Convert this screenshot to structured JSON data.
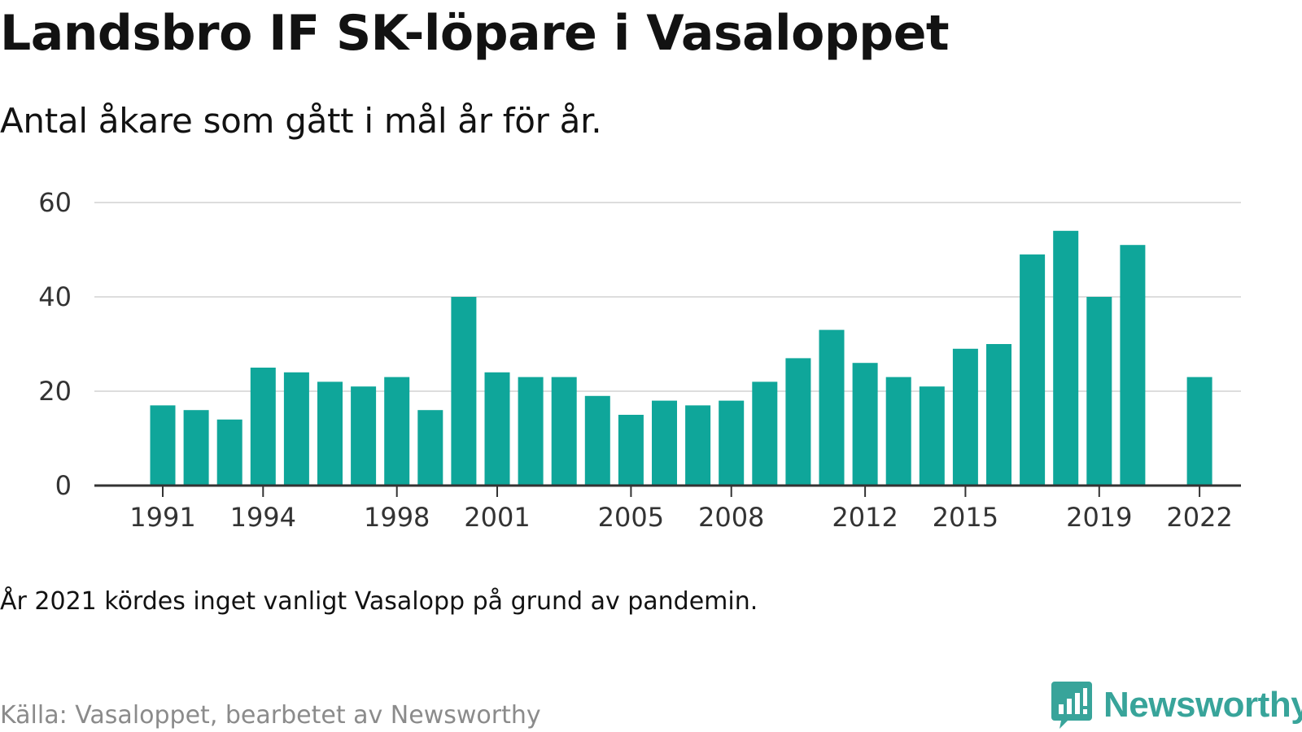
{
  "header": {
    "title": "Landsbro IF SK-löpare i Vasaloppet",
    "subtitle": "Antal åkare som gått i mål år för år."
  },
  "footer": {
    "note": "År 2021 kördes inget vanligt Vasalopp på grund av pandemin.",
    "source": "Källa: Vasaloppet, bearbetet av Newsworthy",
    "brand": "Newsworthy",
    "brand_icon": "bar-chart-logo-icon",
    "brand_color": "#38a49a"
  },
  "chart_data": {
    "type": "bar",
    "x": [
      1991,
      1992,
      1993,
      1994,
      1995,
      1996,
      1997,
      1998,
      1999,
      2000,
      2001,
      2002,
      2003,
      2004,
      2005,
      2006,
      2007,
      2008,
      2009,
      2010,
      2011,
      2012,
      2013,
      2014,
      2015,
      2016,
      2017,
      2018,
      2019,
      2020,
      2021,
      2022
    ],
    "values": [
      17,
      16,
      14,
      25,
      24,
      22,
      21,
      23,
      16,
      40,
      24,
      23,
      23,
      19,
      15,
      18,
      17,
      18,
      22,
      27,
      33,
      26,
      23,
      21,
      29,
      30,
      49,
      54,
      40,
      51,
      null,
      23
    ],
    "xticks": [
      "1991",
      "1994",
      "1998",
      "2001",
      "2005",
      "2008",
      "2012",
      "2015",
      "2019",
      "2022"
    ],
    "yticks": [
      "0",
      "20",
      "40",
      "60"
    ],
    "ylim": [
      0,
      60
    ],
    "grid": true,
    "bar_color": "#0fa69a"
  }
}
